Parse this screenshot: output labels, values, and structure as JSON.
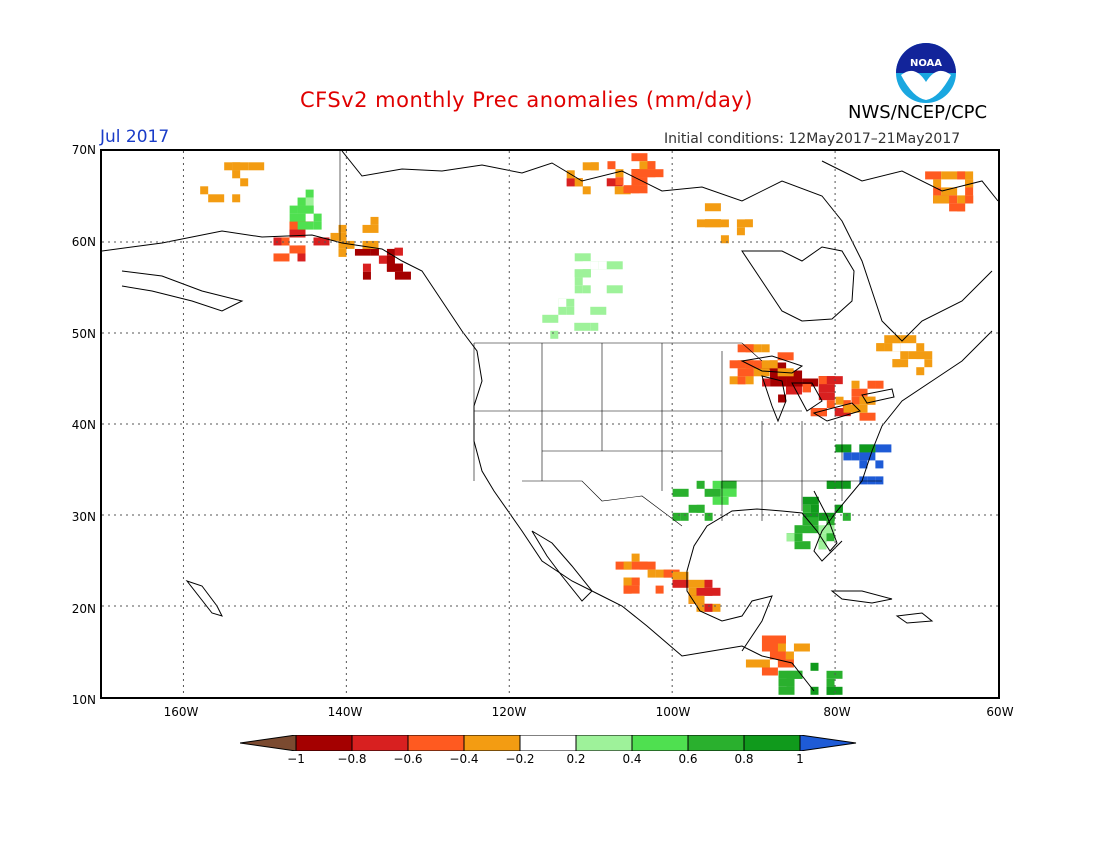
{
  "title": "CFSv2 monthly Prec anomalies (mm/day)",
  "period": "Jul 2017",
  "initial_conditions": "Initial conditions: 12May2017–21May2017",
  "agency": "NWS/NCEP/CPC",
  "logo_text": "NOAA",
  "lat_labels": [
    "70N",
    "60N",
    "50N",
    "40N",
    "30N",
    "20N",
    "10N"
  ],
  "lon_labels": [
    "160W",
    "140W",
    "120W",
    "100W",
    "80W",
    "60W"
  ],
  "map_extent": {
    "lon": [
      -170,
      -60
    ],
    "lat": [
      10,
      70
    ]
  },
  "legend": {
    "labels": [
      "−1",
      "−0.8",
      "−0.6",
      "−0.4",
      "−0.2",
      "0.2",
      "0.4",
      "0.6",
      "0.8",
      "1"
    ],
    "colors": [
      "#7b4a30",
      "#a40000",
      "#d82020",
      "#ff5a20",
      "#f39c12",
      "#ffffff",
      "#9ef29a",
      "#4fe050",
      "#2ab02e",
      "#109a1c",
      "#1e5bd6"
    ]
  },
  "anomaly_regions": [
    {
      "lon": -146,
      "lat": 60.5,
      "bin": -0.7
    },
    {
      "lon": -136,
      "lat": 58.5,
      "bin": -0.8
    },
    {
      "lon": -110,
      "lat": 67,
      "bin": -0.6
    },
    {
      "lon": -105,
      "lat": 68,
      "bin": -0.5
    },
    {
      "lon": -87,
      "lat": 45,
      "bin": -0.8
    },
    {
      "lon": -82,
      "lat": 43.5,
      "bin": -0.7
    },
    {
      "lon": -77,
      "lat": 43,
      "bin": -0.4
    },
    {
      "lon": -90,
      "lat": 47,
      "bin": -0.5
    },
    {
      "lon": -72,
      "lat": 48,
      "bin": -0.3
    },
    {
      "lon": -66,
      "lat": 66,
      "bin": -0.4
    },
    {
      "lon": -139,
      "lat": 61,
      "bin": -0.3
    },
    {
      "lon": -95,
      "lat": 62.5,
      "bin": -0.3
    },
    {
      "lon": -78,
      "lat": 36,
      "bin": 1.0
    },
    {
      "lon": -82,
      "lat": 32,
      "bin": 0.8
    },
    {
      "lon": -97,
      "lat": 32,
      "bin": 0.7
    },
    {
      "lon": -84,
      "lat": 28,
      "bin": 0.6
    },
    {
      "lon": -104,
      "lat": 24,
      "bin": -0.4
    },
    {
      "lon": -98,
      "lat": 22,
      "bin": -0.6
    },
    {
      "lon": -88,
      "lat": 15,
      "bin": -0.5
    },
    {
      "lon": -84,
      "lat": 12,
      "bin": 0.9
    },
    {
      "lon": -113,
      "lat": 52,
      "bin": 0.3
    },
    {
      "lon": -110,
      "lat": 57,
      "bin": 0.3
    },
    {
      "lon": -145,
      "lat": 64,
      "bin": 0.4
    },
    {
      "lon": -155,
      "lat": 67,
      "bin": -0.3
    }
  ]
}
